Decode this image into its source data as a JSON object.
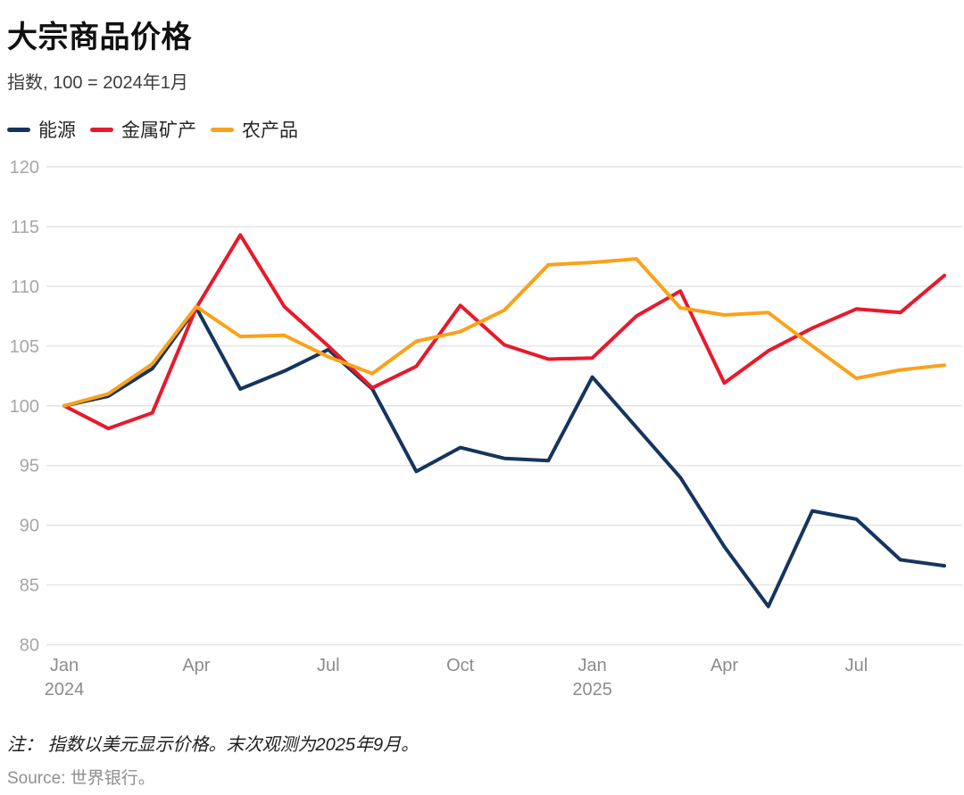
{
  "title": "大宗商品价格",
  "subtitle": "指数, 100 = 2024年1月",
  "note": "注： 指数以美元显示价格。末次观测为2025年9月。",
  "source": "Source: 世界银行。",
  "chart_data": {
    "type": "line",
    "title": "大宗商品价格",
    "subtitle_index_base": "指数, 100 = 2024年1月",
    "x_unit": "month",
    "months": [
      "2024-01",
      "2024-02",
      "2024-03",
      "2024-04",
      "2024-05",
      "2024-06",
      "2024-07",
      "2024-08",
      "2024-09",
      "2024-10",
      "2024-11",
      "2024-12",
      "2025-01",
      "2025-02",
      "2025-03",
      "2025-04",
      "2025-05",
      "2025-06",
      "2025-07",
      "2025-08",
      "2025-09"
    ],
    "x_ticks": [
      {
        "index": 0,
        "label": "Jan",
        "year": "2024"
      },
      {
        "index": 3,
        "label": "Apr"
      },
      {
        "index": 6,
        "label": "Jul"
      },
      {
        "index": 9,
        "label": "Oct"
      },
      {
        "index": 12,
        "label": "Jan",
        "year": "2025"
      },
      {
        "index": 15,
        "label": "Apr"
      },
      {
        "index": 18,
        "label": "Jul"
      }
    ],
    "y_ticks": [
      80,
      85,
      90,
      95,
      100,
      105,
      110,
      115,
      120
    ],
    "ylim": [
      80,
      120
    ],
    "grid": "horizontal",
    "legend_position": "top-left",
    "series": [
      {
        "name": "能源",
        "slug": "energy",
        "color": "#15355E",
        "values": [
          100,
          100.8,
          103.1,
          108.2,
          101.4,
          102.9,
          104.7,
          101.4,
          94.5,
          96.5,
          95.6,
          95.4,
          102.4,
          98.2,
          94.0,
          88.2,
          83.2,
          91.2,
          90.5,
          87.1,
          86.6
        ]
      },
      {
        "name": "金属矿产",
        "slug": "metals-minerals",
        "color": "#E8192D",
        "values": [
          100,
          98.1,
          99.4,
          108.2,
          114.3,
          108.3,
          105.0,
          101.5,
          103.3,
          108.4,
          105.1,
          103.9,
          104.0,
          107.5,
          109.6,
          101.9,
          104.6,
          106.5,
          108.1,
          107.8,
          110.9
        ]
      },
      {
        "name": "农产品",
        "slug": "agriculture",
        "color": "#F9A21B",
        "values": [
          100,
          101.0,
          103.5,
          108.3,
          105.8,
          105.9,
          104.1,
          102.7,
          105.4,
          106.2,
          108.0,
          111.8,
          112.0,
          112.3,
          108.2,
          107.6,
          107.8,
          105.0,
          102.3,
          103.0,
          103.4
        ]
      }
    ]
  }
}
